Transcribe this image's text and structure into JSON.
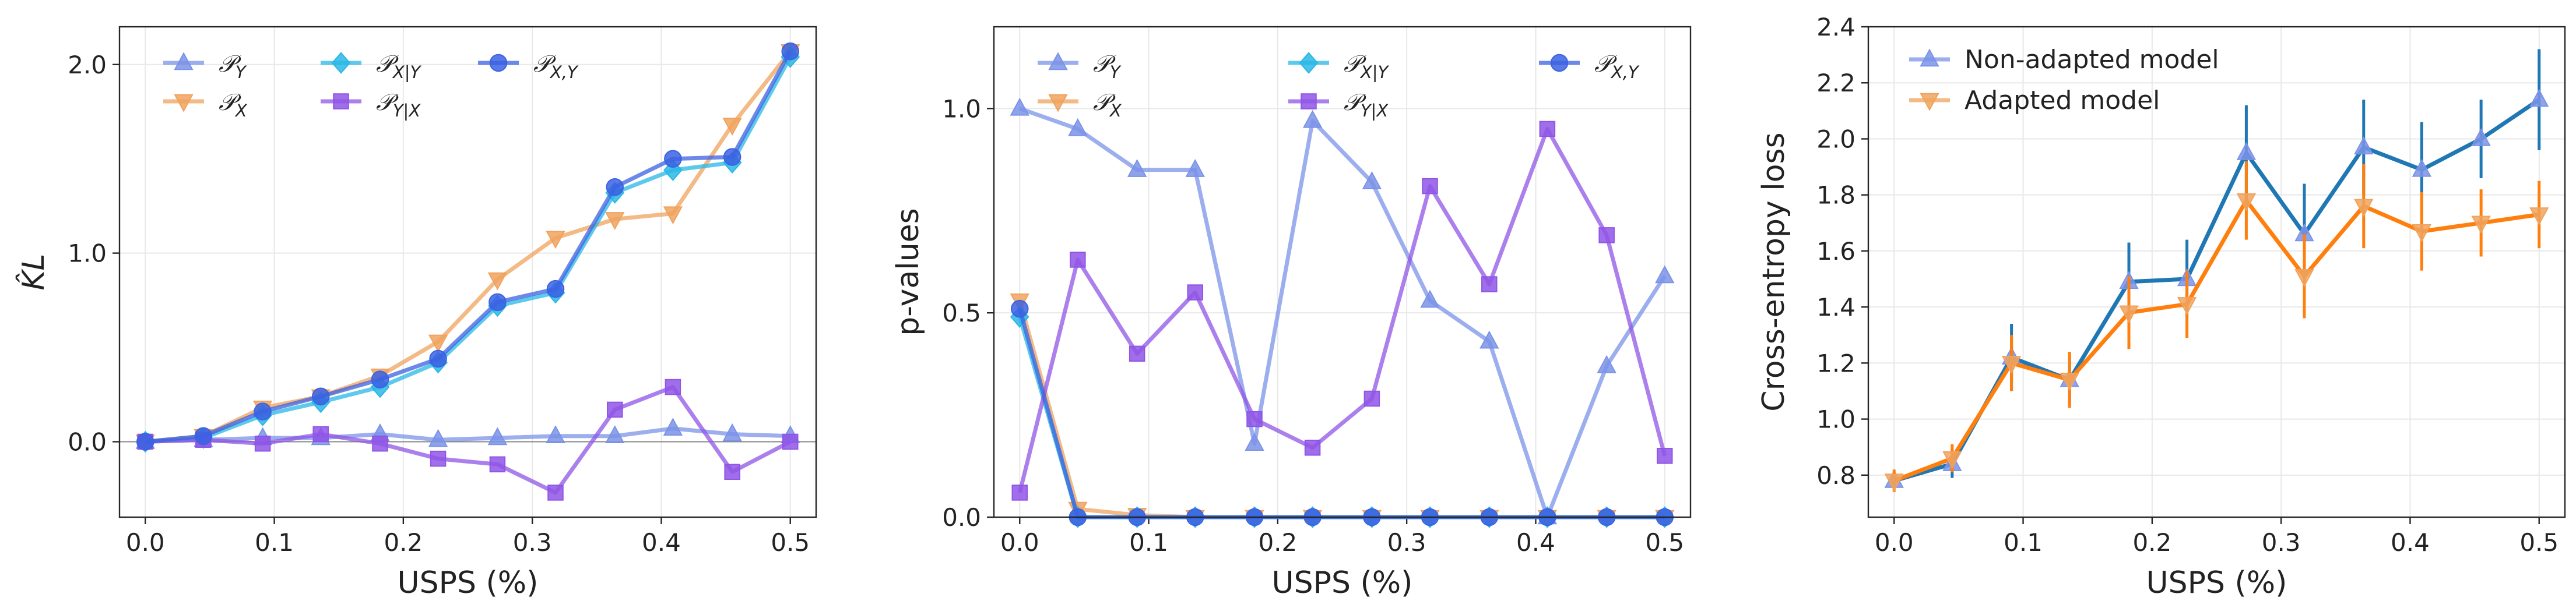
{
  "chart_data": [
    {
      "type": "line",
      "xlabel": "USPS (%)",
      "ylabel": "K̂L",
      "xlim": [
        -0.02,
        0.52
      ],
      "ylim": [
        -0.4,
        2.2
      ],
      "xticks": [
        "0.0",
        "0.1",
        "0.2",
        "0.3",
        "0.4",
        "0.5"
      ],
      "yticks": [
        "0.0",
        "1.0",
        "2.0"
      ],
      "grid": true,
      "legend_position": "top-left",
      "legend_columns": 3,
      "x": [
        0.0,
        0.045,
        0.091,
        0.136,
        0.182,
        0.227,
        0.273,
        0.318,
        0.364,
        0.409,
        0.455,
        0.5
      ],
      "series": [
        {
          "name": "𝒫_Y",
          "color": "#7b93e8",
          "marker": "triangle-up",
          "values": [
            0.0,
            0.01,
            0.02,
            0.02,
            0.04,
            0.01,
            0.02,
            0.03,
            0.03,
            0.07,
            0.04,
            0.03
          ]
        },
        {
          "name": "𝒫_X",
          "color": "#f0a35e",
          "marker": "triangle-down",
          "values": [
            0.0,
            0.03,
            0.18,
            0.24,
            0.35,
            0.53,
            0.86,
            1.08,
            1.18,
            1.21,
            1.68,
            2.07
          ]
        },
        {
          "name": "𝒫_X|Y",
          "color": "#2ab7e6",
          "marker": "diamond",
          "values": [
            0.0,
            0.02,
            0.14,
            0.21,
            0.29,
            0.42,
            0.72,
            0.79,
            1.32,
            1.44,
            1.48,
            2.04
          ]
        },
        {
          "name": "𝒫_Y|X",
          "color": "#8f55e6",
          "marker": "square",
          "values": [
            0.0,
            0.01,
            -0.01,
            0.04,
            -0.01,
            -0.09,
            -0.12,
            -0.27,
            0.17,
            0.29,
            -0.16,
            0.0
          ]
        },
        {
          "name": "𝒫_X,Y",
          "color": "#3b62e2",
          "marker": "circle",
          "values": [
            0.0,
            0.03,
            0.16,
            0.24,
            0.33,
            0.44,
            0.74,
            0.81,
            1.35,
            1.5,
            1.51,
            2.07
          ]
        }
      ],
      "hline": 0.0
    },
    {
      "type": "line",
      "xlabel": "USPS (%)",
      "ylabel": "p-values",
      "xlim": [
        -0.02,
        0.52
      ],
      "ylim": [
        0.0,
        1.2
      ],
      "xticks": [
        "0.0",
        "0.1",
        "0.2",
        "0.3",
        "0.4",
        "0.5"
      ],
      "yticks": [
        "0.0",
        "0.5",
        "1.0"
      ],
      "grid": true,
      "legend_position": "top-left",
      "legend_columns": 3,
      "x": [
        0.0,
        0.045,
        0.091,
        0.136,
        0.182,
        0.227,
        0.273,
        0.318,
        0.364,
        0.409,
        0.455,
        0.5
      ],
      "series": [
        {
          "name": "𝒫_Y",
          "color": "#7b93e8",
          "marker": "triangle-up",
          "values": [
            1.0,
            0.95,
            0.85,
            0.85,
            0.18,
            0.97,
            0.82,
            0.53,
            0.43,
            0.0,
            0.37,
            0.59
          ]
        },
        {
          "name": "𝒫_X",
          "color": "#f0a35e",
          "marker": "triangle-down",
          "values": [
            0.53,
            0.02,
            0.005,
            0.0,
            0.0,
            0.0,
            0.0,
            0.0,
            0.0,
            0.0,
            0.0,
            0.0
          ]
        },
        {
          "name": "𝒫_X|Y",
          "color": "#2ab7e6",
          "marker": "diamond",
          "values": [
            0.49,
            0.0,
            0.0,
            0.0,
            0.0,
            0.0,
            0.0,
            0.0,
            0.0,
            0.0,
            0.0,
            0.0
          ]
        },
        {
          "name": "𝒫_Y|X",
          "color": "#8f55e6",
          "marker": "square",
          "values": [
            0.06,
            0.63,
            0.4,
            0.55,
            0.24,
            0.17,
            0.29,
            0.81,
            0.57,
            0.95,
            0.69,
            0.15
          ]
        },
        {
          "name": "𝒫_X,Y",
          "color": "#3b62e2",
          "marker": "circle",
          "values": [
            0.51,
            0.0,
            0.0,
            0.0,
            0.0,
            0.0,
            0.0,
            0.0,
            0.0,
            0.0,
            0.0,
            0.0
          ]
        }
      ]
    },
    {
      "type": "line",
      "xlabel": "USPS (%)",
      "ylabel": "Cross-entropy loss",
      "xlim": [
        -0.02,
        0.52
      ],
      "ylim": [
        0.65,
        2.4
      ],
      "xticks": [
        "0.0",
        "0.1",
        "0.2",
        "0.3",
        "0.4",
        "0.5"
      ],
      "yticks": [
        "0.8",
        "1.0",
        "1.2",
        "1.4",
        "1.6",
        "1.8",
        "2.0",
        "2.2",
        "2.4"
      ],
      "grid": true,
      "legend_position": "top-left",
      "legend_columns": 1,
      "x": [
        0.0,
        0.045,
        0.091,
        0.136,
        0.182,
        0.227,
        0.273,
        0.318,
        0.364,
        0.409,
        0.455,
        0.5
      ],
      "series": [
        {
          "name": "Non-adapted model",
          "color": "#1f77b4",
          "legend_color": "#7b93e8",
          "marker": "triangle-up",
          "values": [
            0.78,
            0.84,
            1.22,
            1.14,
            1.49,
            1.5,
            1.95,
            1.66,
            1.97,
            1.89,
            2.0,
            2.14
          ],
          "errors": [
            0.03,
            0.05,
            0.12,
            0.08,
            0.14,
            0.14,
            0.17,
            0.18,
            0.17,
            0.17,
            0.14,
            0.18
          ]
        },
        {
          "name": "Adapted model",
          "color": "#ff7f0e",
          "legend_color": "#f0a35e",
          "marker": "triangle-down",
          "values": [
            0.78,
            0.86,
            1.2,
            1.14,
            1.38,
            1.41,
            1.78,
            1.51,
            1.76,
            1.67,
            1.7,
            1.73
          ],
          "errors": [
            0.04,
            0.05,
            0.1,
            0.1,
            0.13,
            0.12,
            0.14,
            0.15,
            0.15,
            0.14,
            0.12,
            0.12
          ]
        }
      ]
    }
  ]
}
